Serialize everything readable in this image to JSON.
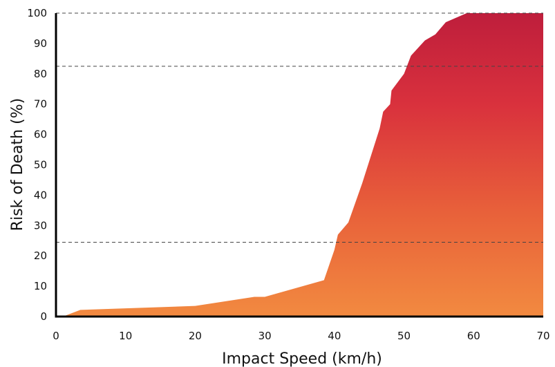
{
  "chart_data": {
    "type": "area",
    "title": "",
    "xlabel": "Impact Speed (km/h)",
    "ylabel": "Risk of Death (%)",
    "xlim": [
      0,
      70
    ],
    "ylim": [
      0,
      100
    ],
    "x_ticks": [
      "0",
      "10",
      "20",
      "30",
      "40",
      "50",
      "60",
      "70"
    ],
    "y_ticks": [
      "0",
      "10",
      "20",
      "30",
      "40",
      "50",
      "60",
      "70",
      "80",
      "90",
      "100"
    ],
    "reference_lines_y": [
      100,
      82.5,
      24.5
    ],
    "grid": false,
    "legend": "none",
    "gradient_colors": {
      "top": "#BE1E3C",
      "middle": "#D9313D",
      "lower": "#E8603A",
      "bottom": "#F28A40"
    },
    "series": [
      {
        "x": [
          0,
          1,
          3.5,
          20,
          28.5,
          30,
          38.5,
          40,
          40.5,
          42,
          44,
          46.5,
          47,
          48,
          48.2,
          50,
          51,
          53,
          54.5,
          56,
          59,
          70
        ],
        "y": [
          0,
          0,
          2.2,
          3.5,
          6.5,
          6.5,
          12,
          22,
          27,
          31,
          44,
          62,
          67.5,
          70,
          74.5,
          80,
          86,
          91,
          93,
          97,
          100,
          100
        ]
      }
    ]
  }
}
